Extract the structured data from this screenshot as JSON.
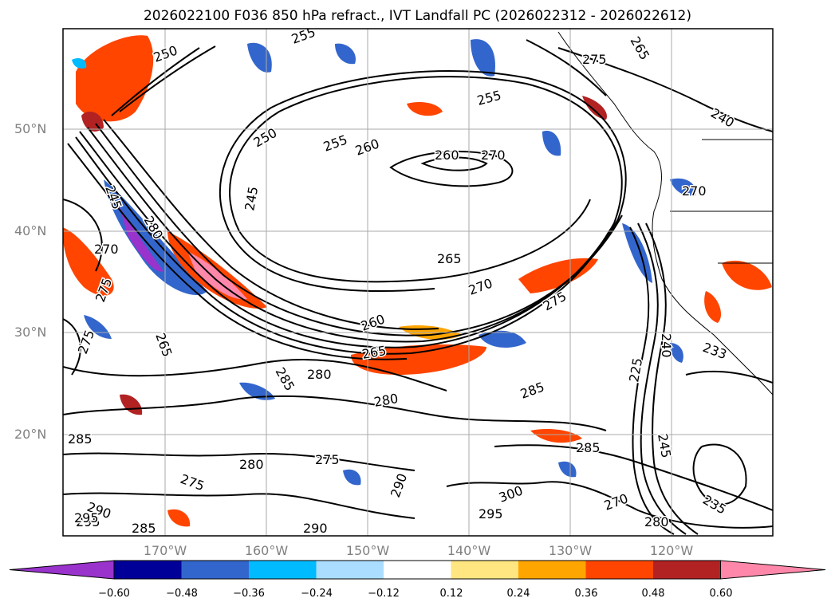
{
  "title": "2026022100 F036 850 hPa refract., IVT Landfall PC (2026022312 - 2026022612)",
  "axes": {
    "lat_labels": [
      "50°N",
      "40°N",
      "30°N",
      "20°N"
    ],
    "lon_labels": [
      "170°W",
      "160°W",
      "150°W",
      "140°W",
      "130°W",
      "120°W"
    ]
  },
  "contour_labels": [
    "250",
    "250",
    "255",
    "255",
    "255",
    "260",
    "260",
    "270",
    "275",
    "265",
    "240",
    "245",
    "245",
    "280",
    "270",
    "275",
    "275",
    "265",
    "260",
    "265",
    "270",
    "275",
    "265",
    "270",
    "280",
    "280",
    "285",
    "285",
    "280",
    "285",
    "275",
    "275",
    "285",
    "240",
    "225",
    "245",
    "233",
    "235",
    "290",
    "295",
    "300",
    "295",
    "290",
    "285",
    "290",
    "295",
    "270",
    "280"
  ],
  "colorbar": {
    "ticks": [
      "−0.60",
      "−0.48",
      "−0.36",
      "−0.24",
      "−0.12",
      "0.12",
      "0.24",
      "0.36",
      "0.48",
      "0.60"
    ],
    "colors": [
      "#9933cc",
      "#000099",
      "#3366cc",
      "#00bbff",
      "#aaddff",
      "#ffffff",
      "#ffe680",
      "#ffa500",
      "#ff4500",
      "#b22222",
      "#ff88aa"
    ]
  }
}
